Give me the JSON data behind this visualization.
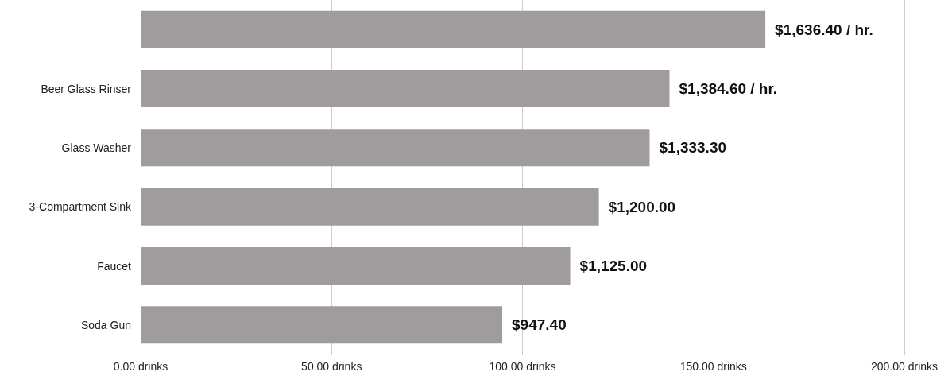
{
  "chart_data": {
    "type": "bar",
    "orientation": "horizontal",
    "categories": [
      null,
      "Beer Glass Rinser",
      "Glass Washer",
      "3-Compartment Sink",
      "Faucet",
      "Soda Gun"
    ],
    "values": [
      163.6,
      138.5,
      133.3,
      120,
      112.5,
      94.7
    ],
    "annotations": [
      {
        "text": "$1,636.40 / hr.",
        "x": 163.6
      },
      {
        "text": "$1,384.60 / hr.",
        "x": 138.5,
        "y": "Beer Glass Rinser"
      },
      {
        "text": "$1,333.30",
        "x": 133.3,
        "y": "Glass Washer"
      },
      {
        "text": "$1,200.00",
        "x": 120,
        "y": "3-Compartment Sink"
      },
      {
        "text": "$1,125.00",
        "x": 112.5,
        "y": "Faucet"
      },
      {
        "text": "$947.40",
        "x": 94.7,
        "y": "Soda Gun"
      }
    ],
    "color": "#a09c9d",
    "xlim": [
      0,
      200
    ],
    "xticks": [
      {
        "value": 0,
        "label": "0.00 drinks"
      },
      {
        "value": 50,
        "label": "50.00 drinks"
      },
      {
        "value": 100,
        "label": "100.00 drinks"
      },
      {
        "value": 150,
        "label": "150.00 drinks"
      },
      {
        "value": 200,
        "label": "200.00 drinks"
      }
    ],
    "grid": "x"
  }
}
